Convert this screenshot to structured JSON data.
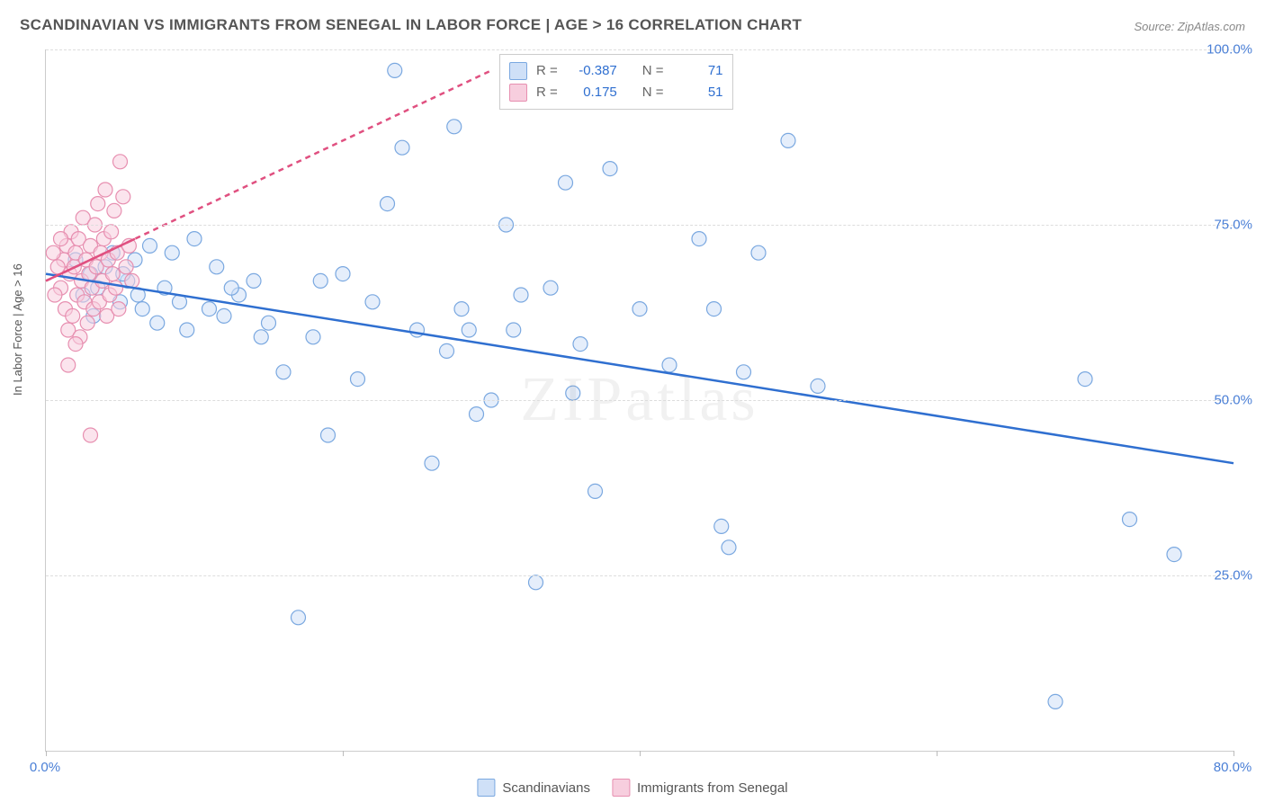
{
  "title": "SCANDINAVIAN VS IMMIGRANTS FROM SENEGAL IN LABOR FORCE | AGE > 16 CORRELATION CHART",
  "source": "Source: ZipAtlas.com",
  "watermark": "ZIPatlas",
  "ylabel": "In Labor Force | Age > 16",
  "chart": {
    "type": "scatter",
    "background_color": "#ffffff",
    "grid_color": "#dddddd",
    "axis_color": "#cccccc",
    "xlim": [
      0,
      80
    ],
    "ylim": [
      0,
      100
    ],
    "xticks": [
      0,
      20,
      40,
      60,
      80
    ],
    "xtick_labels": [
      "0.0%",
      "",
      "",
      "",
      "80.0%"
    ],
    "ytick_values": [
      25,
      50,
      75,
      100
    ],
    "ytick_labels": [
      "25.0%",
      "50.0%",
      "75.0%",
      "100.0%"
    ],
    "label_fontsize": 15,
    "label_color": "#4a7fd6",
    "marker_radius": 8,
    "marker_stroke_width": 1.2,
    "series": [
      {
        "name": "Scandinavians",
        "fill": "#cfe0f7",
        "stroke": "#7aa8e0",
        "fill_opacity": 0.55,
        "R": "-0.387",
        "N": "71",
        "trend": {
          "x1": 0,
          "y1": 68,
          "x2": 80,
          "y2": 41,
          "stroke": "#2f6fd0",
          "width": 2.5,
          "dash": null
        },
        "points": [
          [
            2,
            70
          ],
          [
            3,
            68
          ],
          [
            3.5,
            66
          ],
          [
            4,
            69
          ],
          [
            5,
            64
          ],
          [
            5.5,
            67
          ],
          [
            6,
            70
          ],
          [
            6.5,
            63
          ],
          [
            7,
            72
          ],
          [
            7.5,
            61
          ],
          [
            8,
            66
          ],
          [
            8.5,
            71
          ],
          [
            9,
            64
          ],
          [
            10,
            73
          ],
          [
            11,
            63
          ],
          [
            12,
            62
          ],
          [
            13,
            65
          ],
          [
            14,
            67
          ],
          [
            15,
            61
          ],
          [
            16,
            54
          ],
          [
            17,
            19
          ],
          [
            18,
            59
          ],
          [
            19,
            45
          ],
          [
            20,
            68
          ],
          [
            21,
            53
          ],
          [
            22,
            64
          ],
          [
            23,
            78
          ],
          [
            23.5,
            97
          ],
          [
            24,
            86
          ],
          [
            25,
            60
          ],
          [
            26,
            41
          ],
          [
            27,
            57
          ],
          [
            27.5,
            89
          ],
          [
            28,
            63
          ],
          [
            28.5,
            60
          ],
          [
            29,
            48
          ],
          [
            30,
            50
          ],
          [
            31,
            75
          ],
          [
            31.5,
            60
          ],
          [
            32,
            65
          ],
          [
            33,
            24
          ],
          [
            34,
            66
          ],
          [
            35,
            81
          ],
          [
            35.5,
            51
          ],
          [
            36,
            58
          ],
          [
            37,
            37
          ],
          [
            38,
            83
          ],
          [
            40,
            63
          ],
          [
            42,
            55
          ],
          [
            44,
            73
          ],
          [
            45,
            63
          ],
          [
            45.5,
            32
          ],
          [
            46,
            29
          ],
          [
            47,
            54
          ],
          [
            48,
            71
          ],
          [
            50,
            87
          ],
          [
            52,
            52
          ],
          [
            68,
            7
          ],
          [
            70,
            53
          ],
          [
            73,
            33
          ],
          [
            76,
            28
          ],
          [
            14.5,
            59
          ],
          [
            18.5,
            67
          ],
          [
            11.5,
            69
          ],
          [
            9.5,
            60
          ],
          [
            6.2,
            65
          ],
          [
            4.5,
            71
          ],
          [
            2.5,
            65
          ],
          [
            3.2,
            62
          ],
          [
            5.2,
            68
          ],
          [
            12.5,
            66
          ]
        ]
      },
      {
        "name": "Immigrants from Senegal",
        "fill": "#f7cede",
        "stroke": "#e78fb0",
        "fill_opacity": 0.55,
        "R": "0.175",
        "N": "51",
        "trend": {
          "x1": 0,
          "y1": 67,
          "x2": 30,
          "y2": 97,
          "stroke": "#e05080",
          "width": 2.5,
          "dash": "6,5"
        },
        "solid_trend": {
          "x1": 0,
          "y1": 67,
          "x2": 6,
          "y2": 73,
          "stroke": "#e05080",
          "width": 2.5
        },
        "points": [
          [
            1,
            66
          ],
          [
            1.2,
            70
          ],
          [
            1.3,
            63
          ],
          [
            1.4,
            72
          ],
          [
            1.5,
            60
          ],
          [
            1.6,
            68
          ],
          [
            1.7,
            74
          ],
          [
            1.8,
            62
          ],
          [
            1.9,
            69
          ],
          [
            2,
            71
          ],
          [
            2.1,
            65
          ],
          [
            2.2,
            73
          ],
          [
            2.3,
            59
          ],
          [
            2.4,
            67
          ],
          [
            2.5,
            76
          ],
          [
            2.6,
            64
          ],
          [
            2.7,
            70
          ],
          [
            2.8,
            61
          ],
          [
            2.9,
            68
          ],
          [
            3.0,
            72
          ],
          [
            3.1,
            66
          ],
          [
            3.2,
            63
          ],
          [
            3.3,
            75
          ],
          [
            3.4,
            69
          ],
          [
            3.5,
            78
          ],
          [
            3.6,
            64
          ],
          [
            3.7,
            71
          ],
          [
            3.8,
            67
          ],
          [
            3.9,
            73
          ],
          [
            4.0,
            80
          ],
          [
            4.1,
            62
          ],
          [
            4.2,
            70
          ],
          [
            4.3,
            65
          ],
          [
            4.4,
            74
          ],
          [
            4.5,
            68
          ],
          [
            4.6,
            77
          ],
          [
            4.7,
            66
          ],
          [
            4.8,
            71
          ],
          [
            4.9,
            63
          ],
          [
            5.0,
            84
          ],
          [
            5.2,
            79
          ],
          [
            5.4,
            69
          ],
          [
            5.6,
            72
          ],
          [
            5.8,
            67
          ],
          [
            3.0,
            45
          ],
          [
            2.0,
            58
          ],
          [
            1.5,
            55
          ],
          [
            1.0,
            73
          ],
          [
            0.8,
            69
          ],
          [
            0.6,
            65
          ],
          [
            0.5,
            71
          ]
        ]
      }
    ]
  },
  "stat_legend": {
    "rows": [
      {
        "swatch_fill": "#cfe0f7",
        "swatch_stroke": "#7aa8e0",
        "r_label": "R =",
        "r_val": "-0.387",
        "n_label": "N =",
        "n_val": "71"
      },
      {
        "swatch_fill": "#f7cede",
        "swatch_stroke": "#e78fb0",
        "r_label": "R =",
        "r_val": "0.175",
        "n_label": "N =",
        "n_val": "51"
      }
    ]
  },
  "bottom_legend": {
    "items": [
      {
        "swatch_fill": "#cfe0f7",
        "swatch_stroke": "#7aa8e0",
        "label": "Scandinavians"
      },
      {
        "swatch_fill": "#f7cede",
        "swatch_stroke": "#e78fb0",
        "label": "Immigrants from Senegal"
      }
    ]
  }
}
